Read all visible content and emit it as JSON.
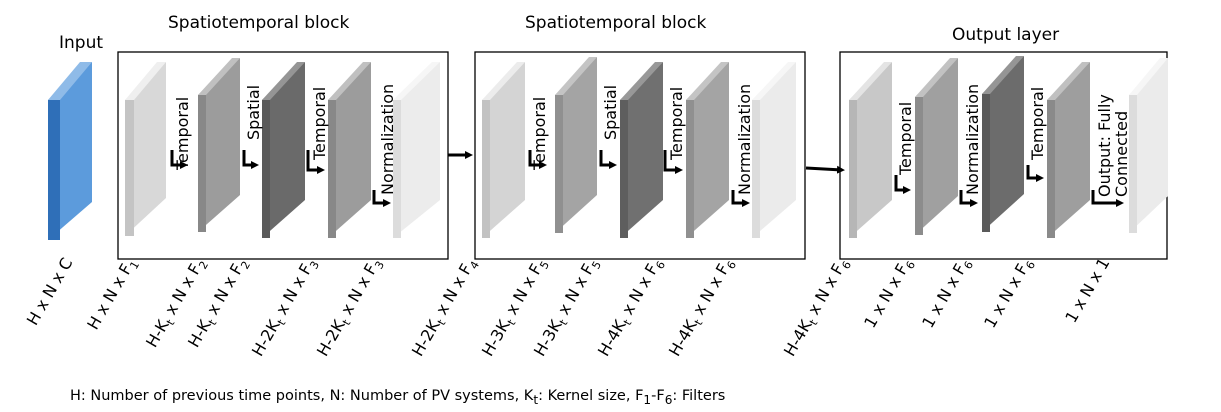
{
  "input": {
    "title": "Input",
    "dim": [
      "H x N x C"
    ]
  },
  "blocks": [
    {
      "title": "Spatiotemporal block",
      "ops": [
        "Temporal",
        "Spatial",
        "Temporal",
        "Normalization"
      ],
      "dims": [
        [
          "H x N x F",
          "1"
        ],
        [
          "H-K",
          "t",
          " x N x F",
          "2"
        ],
        [
          "H-K",
          "t",
          " x N x F",
          "2"
        ],
        [
          "H-2K",
          "t",
          "  x N x F",
          "3"
        ],
        [
          "H-2K",
          "t",
          " x N x F",
          "3"
        ]
      ]
    },
    {
      "title": "Spatiotemporal block",
      "ops": [
        "Temporal",
        "Spatial",
        "Temporal",
        "Normalization"
      ],
      "dims": [
        [
          "H-2K",
          "t",
          " x N x F",
          "4"
        ],
        [
          "H-3K",
          "t",
          " x N x F",
          "5"
        ],
        [
          "H-3K",
          "t",
          " x N x F",
          "5"
        ],
        [
          "H-4K",
          "t",
          " x N x F",
          "6"
        ],
        [
          "H-4K",
          "t",
          " x N x F",
          "6"
        ]
      ]
    },
    {
      "title": "Output layer",
      "ops": [
        "Temporal",
        "Normalization",
        "Temporal",
        "Output: Fully",
        "Connected"
      ],
      "dims": [
        [
          "H-4K",
          "t",
          "  x N x F",
          "6"
        ],
        [
          "1 x N x F",
          "6"
        ],
        [
          "1 x N x F",
          "6"
        ],
        [
          "1 x N x F",
          "6"
        ],
        [
          "1 x N x 1"
        ]
      ]
    }
  ],
  "caption": {
    "p1": "H: Number of previous time points, N: Number of PV systems, K",
    "s1": "t",
    "p2": ": Kernel size,  F",
    "s2": "1",
    "p3": "-F",
    "s3": "6",
    "p4": ": Filters"
  },
  "colors": {
    "input_layer": "#3b7dc8",
    "very_light": "#e8e8e8",
    "light": "#cfcfcf",
    "mid": "#9a9a9a",
    "dark": "#6a6a6a",
    "frame": "#000000"
  }
}
